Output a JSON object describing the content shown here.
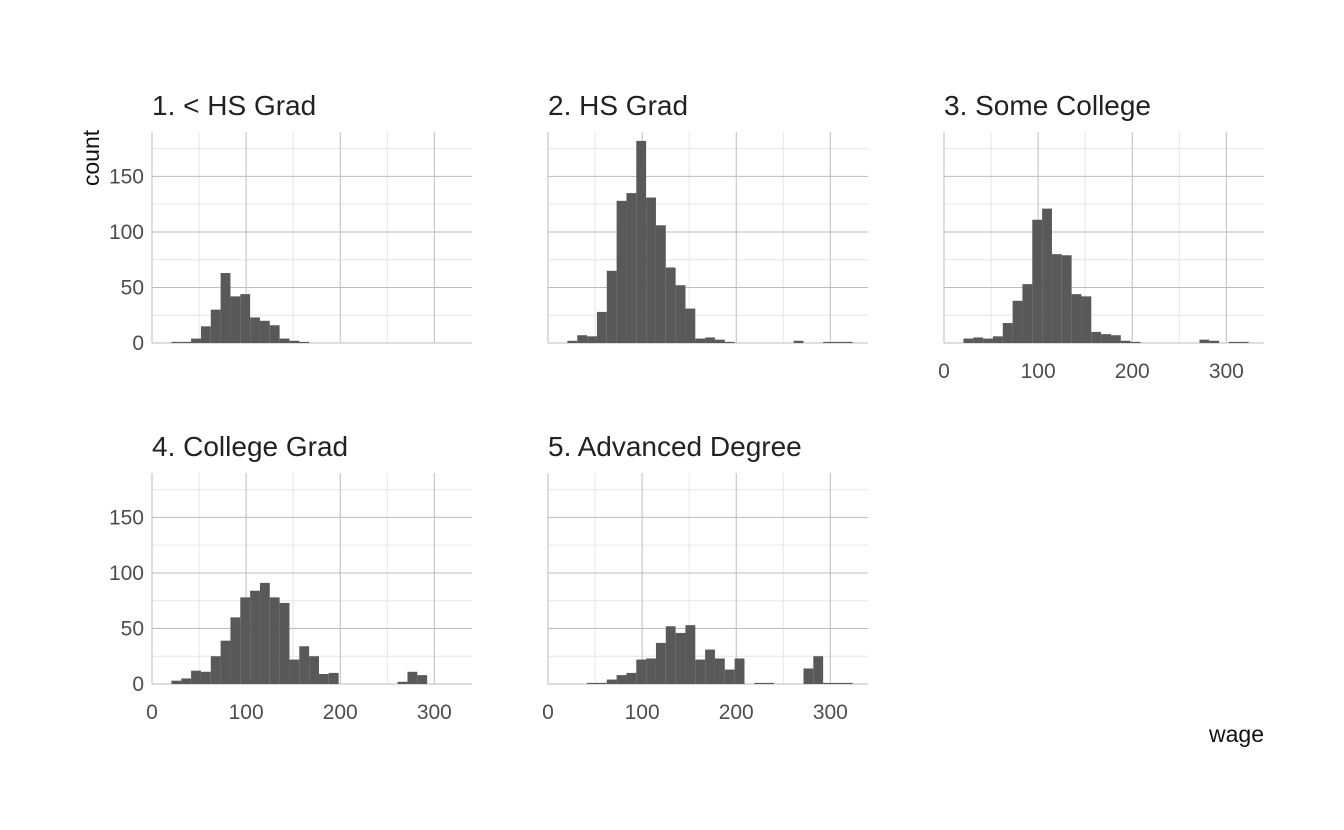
{
  "chart_data": {
    "type": "bar",
    "subtype": "faceted-histogram",
    "xlabel": "wage",
    "ylabel": "count",
    "xlim": [
      0,
      340
    ],
    "ylim": [
      0,
      190
    ],
    "x_ticks": [
      0,
      100,
      200,
      300
    ],
    "y_ticks": [
      0,
      50,
      100,
      150
    ],
    "grid": true,
    "bar_color": "#595959",
    "bin_width": 10.45,
    "bins_start": 10.2,
    "bins_count": 30,
    "panels": [
      {
        "title": "1. < HS Grad",
        "values": [
          0,
          1,
          1,
          4,
          15,
          30,
          63,
          42,
          44,
          23,
          20,
          16,
          4,
          2,
          1,
          0,
          0,
          0,
          0,
          0,
          0,
          0,
          0,
          0,
          0,
          0,
          0,
          0,
          0,
          0
        ]
      },
      {
        "title": "2. HS Grad",
        "values": [
          0,
          2,
          7,
          6,
          28,
          65,
          128,
          135,
          182,
          131,
          106,
          68,
          52,
          31,
          4,
          5,
          3,
          1,
          0,
          0,
          0,
          0,
          0,
          0,
          2,
          0,
          0,
          1,
          1,
          1
        ]
      },
      {
        "title": "3. Some College",
        "values": [
          0,
          4,
          5,
          4,
          6,
          18,
          38,
          53,
          111,
          121,
          80,
          79,
          44,
          42,
          10,
          8,
          7,
          2,
          1,
          0,
          0,
          0,
          0,
          0,
          0,
          3,
          2,
          0,
          1,
          1
        ]
      },
      {
        "title": "4. College Grad",
        "values": [
          0,
          3,
          5,
          12,
          11,
          25,
          39,
          60,
          78,
          84,
          91,
          78,
          73,
          22,
          34,
          25,
          9,
          10,
          0,
          0,
          0,
          0,
          0,
          0,
          2,
          11,
          8,
          0,
          0,
          0
        ]
      },
      {
        "title": "5. Advanced Degree",
        "values": [
          0,
          0,
          0,
          1,
          1,
          4,
          8,
          10,
          22,
          23,
          37,
          52,
          46,
          53,
          22,
          31,
          23,
          13,
          23,
          0,
          1,
          1,
          0,
          0,
          0,
          14,
          25,
          1,
          1,
          1
        ]
      }
    ]
  }
}
